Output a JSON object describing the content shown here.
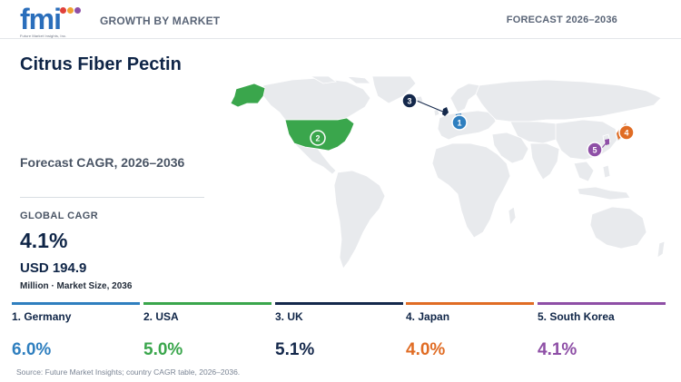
{
  "header": {
    "logo_text": "fmi",
    "logo_tagline": "Future Market Insights, Inc.",
    "section_label": "GROWTH BY MARKET",
    "forecast_label": "FORECAST 2026–2036"
  },
  "summary": {
    "title": "Citrus Fiber Pectin",
    "forecast_label": "Forecast CAGR, 2026–2036",
    "global_cagr_label": "GLOBAL CAGR",
    "global_cagr_value": "4.1%",
    "market_size": "USD 194.9",
    "market_size_unit": "Million · Market Size, 2036"
  },
  "chart_data": {
    "type": "map",
    "metric": "CAGR, 2026–2036",
    "countries": [
      {
        "rank": "1",
        "label": "1. Germany",
        "name": "Germany",
        "value": 6.0,
        "display": "6.0%",
        "color": "#2f7fbf"
      },
      {
        "rank": "2",
        "label": "2. USA",
        "name": "USA",
        "value": 5.0,
        "display": "5.0%",
        "color": "#3aa64c"
      },
      {
        "rank": "3",
        "label": "3. UK",
        "name": "UK",
        "value": 5.1,
        "display": "5.1%",
        "color": "#14284b"
      },
      {
        "rank": "4",
        "label": "4. Japan",
        "name": "Japan",
        "value": 4.0,
        "display": "4.0%",
        "color": "#e06c24"
      },
      {
        "rank": "5",
        "label": "5. South Korea",
        "name": "South Korea",
        "value": 4.1,
        "display": "4.1%",
        "color": "#8e4fa6"
      }
    ]
  },
  "footer": {
    "source": "Source: Future Market Insights; country CAGR table, 2026–2036."
  },
  "colors": {
    "land": "#e8eaed",
    "land_border": "#ffffff",
    "title": "#0f2547"
  }
}
